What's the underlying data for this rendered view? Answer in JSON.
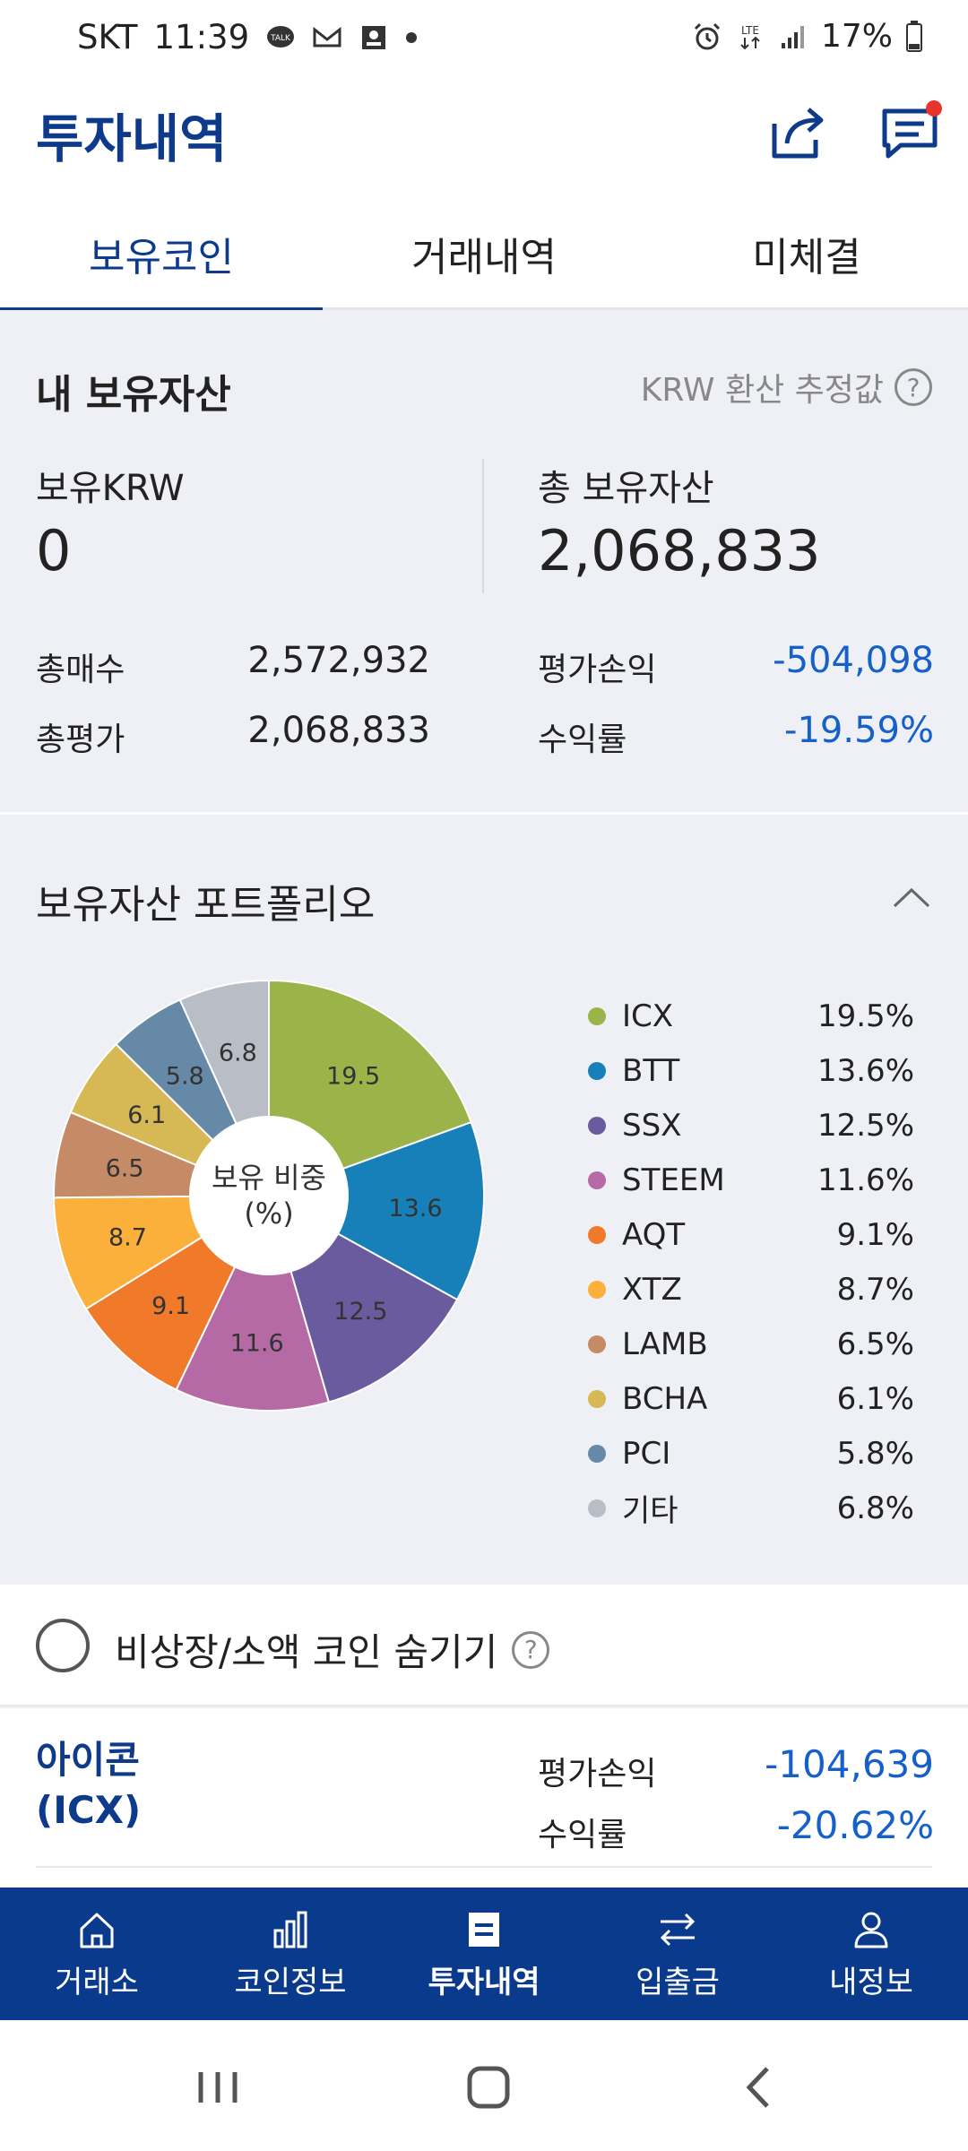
{
  "status_bar": {
    "carrier": "SKT",
    "time": "11:39",
    "battery": "17%"
  },
  "header": {
    "title": "투자내역"
  },
  "tabs": [
    {
      "label": "보유코인",
      "active": true
    },
    {
      "label": "거래내역",
      "active": false
    },
    {
      "label": "미체결",
      "active": false
    }
  ],
  "summary": {
    "title": "내 보유자산",
    "note": "KRW 환산 추정값",
    "krw_label": "보유KRW",
    "krw_value": "0",
    "total_label": "총 보유자산",
    "total_value": "2,068,833",
    "buy_label": "총매수",
    "buy_value": "2,572,932",
    "eval_label": "총평가",
    "eval_value": "2,068,833",
    "pnl_label": "평가손익",
    "pnl_value": "-504,098",
    "rate_label": "수익률",
    "rate_value": "-19.59%"
  },
  "portfolio": {
    "title": "보유자산 포트폴리오",
    "center_line1": "보유 비중",
    "center_line2": "(%)"
  },
  "chart_data": {
    "type": "pie",
    "title": "",
    "categories": [
      "ICX",
      "BTT",
      "SSX",
      "STEEM",
      "AQT",
      "XTZ",
      "LAMB",
      "BCHA",
      "PCI",
      "기타"
    ],
    "values": [
      19.5,
      13.6,
      12.5,
      11.6,
      9.1,
      8.7,
      6.5,
      6.1,
      5.8,
      6.8
    ],
    "percent_labels": [
      "19.5%",
      "13.6%",
      "12.5%",
      "11.6%",
      "9.1%",
      "8.7%",
      "6.5%",
      "6.1%",
      "5.8%",
      "6.8%"
    ],
    "colors": [
      "#9bb44a",
      "#1780b8",
      "#6a5a9e",
      "#b56aa6",
      "#f07a2a",
      "#fbb03b",
      "#c48b66",
      "#d6b855",
      "#6789a8",
      "#b9bdc6"
    ],
    "legend_position": "right"
  },
  "hide_small": {
    "label": "비상장/소액 코인 숨기기"
  },
  "coin": {
    "name_line1": "아이콘",
    "name_line2": "(ICX)",
    "pnl_label": "평가손익",
    "pnl_value": "-104,639",
    "rate_label": "수익률",
    "rate_value": "-20.62%"
  },
  "bottom_nav": [
    {
      "label": "거래소",
      "icon": "home-icon"
    },
    {
      "label": "코인정보",
      "icon": "bar-chart-icon"
    },
    {
      "label": "투자내역",
      "icon": "document-icon"
    },
    {
      "label": "입출금",
      "icon": "transfer-icon"
    },
    {
      "label": "내정보",
      "icon": "user-icon"
    }
  ],
  "colors": {
    "brand": "#0d3a8a",
    "negative": "#1560c9",
    "nav_bg": "#0a3a8c"
  }
}
